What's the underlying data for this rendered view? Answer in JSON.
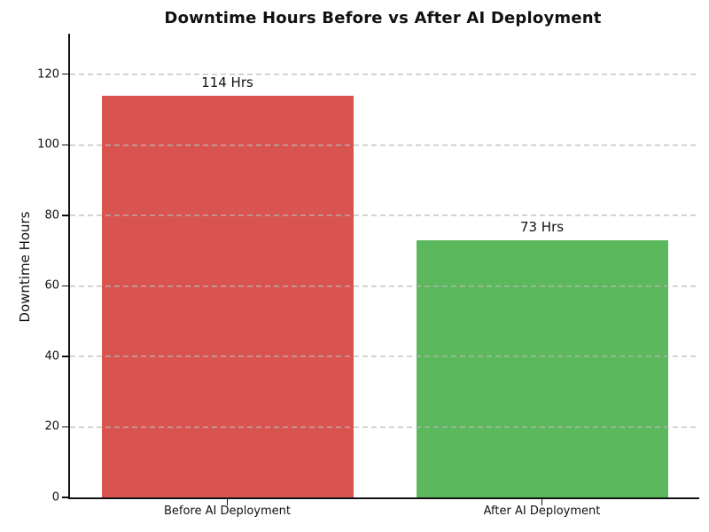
{
  "chart_data": {
    "type": "bar",
    "title": "Downtime Hours Before vs After AI Deployment",
    "xlabel": "",
    "ylabel": "Downtime Hours",
    "categories": [
      "Before AI Deployment",
      "After AI Deployment"
    ],
    "values": [
      114,
      73
    ],
    "value_labels": [
      "114 Hrs",
      "73 Hrs"
    ],
    "bar_colors": [
      "#d9534f",
      "#5cb85c"
    ],
    "yticks": [
      0,
      20,
      40,
      60,
      80,
      100,
      120
    ],
    "ylim": [
      0,
      131.5
    ],
    "bar_width_fraction": 0.4,
    "grid": "horizontal-dashed",
    "grid_color": "#c9c9c9",
    "legend": "none",
    "background_color": "#ffffff",
    "spine_color": "#111111"
  }
}
